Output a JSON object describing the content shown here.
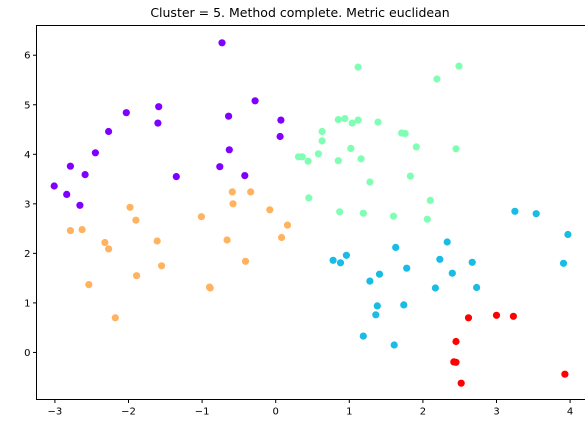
{
  "chart_data": {
    "type": "scatter",
    "title": "Cluster = 5. Method complete. Metric euclidean",
    "xlabel": "",
    "ylabel": "",
    "xlim": [
      -3.25,
      4.25
    ],
    "ylim": [
      -0.95,
      6.6
    ],
    "xticks": [
      -3,
      -2,
      -1,
      0,
      1,
      2,
      3,
      4
    ],
    "yticks": [
      0,
      1,
      2,
      3,
      4,
      5,
      6
    ],
    "grid": false,
    "series": [
      {
        "color": "#8000ff",
        "points": [
          [
            -3.01,
            3.36
          ],
          [
            -2.84,
            3.19
          ],
          [
            -2.79,
            3.76
          ],
          [
            -2.66,
            2.97
          ],
          [
            -2.59,
            3.59
          ],
          [
            -2.45,
            4.03
          ],
          [
            -2.27,
            4.46
          ],
          [
            -2.03,
            4.84
          ],
          [
            -1.59,
            4.96
          ],
          [
            -1.6,
            4.63
          ],
          [
            -1.35,
            3.55
          ],
          [
            -0.73,
            6.25
          ],
          [
            -0.76,
            3.75
          ],
          [
            -0.64,
            4.77
          ],
          [
            -0.63,
            4.09
          ],
          [
            -0.42,
            3.57
          ],
          [
            -0.28,
            5.08
          ],
          [
            0.07,
            4.69
          ],
          [
            0.06,
            4.36
          ]
        ]
      },
      {
        "color": "#80ffb4",
        "points": [
          [
            0.31,
            3.95
          ],
          [
            0.36,
            3.95
          ],
          [
            0.44,
            3.86
          ],
          [
            0.45,
            3.12
          ],
          [
            0.58,
            4.01
          ],
          [
            0.63,
            4.46
          ],
          [
            0.63,
            4.27
          ],
          [
            0.85,
            4.7
          ],
          [
            0.85,
            3.87
          ],
          [
            0.87,
            2.84
          ],
          [
            0.94,
            4.72
          ],
          [
            1.02,
            4.12
          ],
          [
            1.04,
            4.63
          ],
          [
            1.12,
            5.76
          ],
          [
            1.12,
            4.69
          ],
          [
            1.16,
            3.91
          ],
          [
            1.19,
            2.81
          ],
          [
            1.28,
            3.44
          ],
          [
            1.39,
            4.65
          ],
          [
            1.6,
            2.75
          ],
          [
            1.71,
            4.43
          ],
          [
            1.76,
            4.42
          ],
          [
            1.83,
            3.56
          ],
          [
            1.91,
            4.15
          ],
          [
            2.06,
            2.69
          ],
          [
            2.1,
            3.07
          ],
          [
            2.19,
            5.52
          ],
          [
            2.45,
            4.11
          ],
          [
            2.49,
            5.78
          ]
        ]
      },
      {
        "color": "#ffb360",
        "points": [
          [
            -2.79,
            2.46
          ],
          [
            -2.63,
            2.48
          ],
          [
            -2.54,
            1.37
          ],
          [
            -2.32,
            2.22
          ],
          [
            -2.27,
            2.09
          ],
          [
            -2.18,
            0.7
          ],
          [
            -1.98,
            2.93
          ],
          [
            -1.9,
            2.67
          ],
          [
            -1.89,
            1.55
          ],
          [
            -1.61,
            2.25
          ],
          [
            -1.55,
            1.75
          ],
          [
            -1.01,
            2.74
          ],
          [
            -0.9,
            1.32
          ],
          [
            -0.89,
            1.3
          ],
          [
            -0.66,
            2.27
          ],
          [
            -0.59,
            3.24
          ],
          [
            -0.58,
            3.0
          ],
          [
            -0.41,
            1.84
          ],
          [
            -0.34,
            3.24
          ],
          [
            -0.08,
            2.88
          ],
          [
            0.08,
            2.32
          ],
          [
            0.16,
            2.57
          ]
        ]
      },
      {
        "color": "#18bce4",
        "points": [
          [
            0.78,
            1.86
          ],
          [
            0.88,
            1.81
          ],
          [
            0.96,
            1.96
          ],
          [
            1.19,
            0.33
          ],
          [
            1.28,
            1.44
          ],
          [
            1.36,
            0.76
          ],
          [
            1.38,
            0.94
          ],
          [
            1.41,
            1.58
          ],
          [
            1.61,
            0.15
          ],
          [
            1.63,
            2.12
          ],
          [
            1.74,
            0.96
          ],
          [
            1.78,
            1.7
          ],
          [
            2.17,
            1.3
          ],
          [
            2.23,
            1.88
          ],
          [
            2.33,
            2.23
          ],
          [
            2.4,
            1.6
          ],
          [
            2.67,
            1.82
          ],
          [
            2.73,
            1.31
          ],
          [
            3.25,
            2.85
          ],
          [
            3.54,
            2.8
          ],
          [
            3.91,
            1.8
          ],
          [
            3.97,
            2.38
          ]
        ]
      },
      {
        "color": "#ff0000",
        "points": [
          [
            2.42,
            -0.19
          ],
          [
            2.45,
            -0.2
          ],
          [
            2.45,
            0.22
          ],
          [
            2.52,
            -0.62
          ],
          [
            2.62,
            0.7
          ],
          [
            3.0,
            0.75
          ],
          [
            3.23,
            0.73
          ],
          [
            3.93,
            -0.44
          ]
        ]
      }
    ]
  }
}
